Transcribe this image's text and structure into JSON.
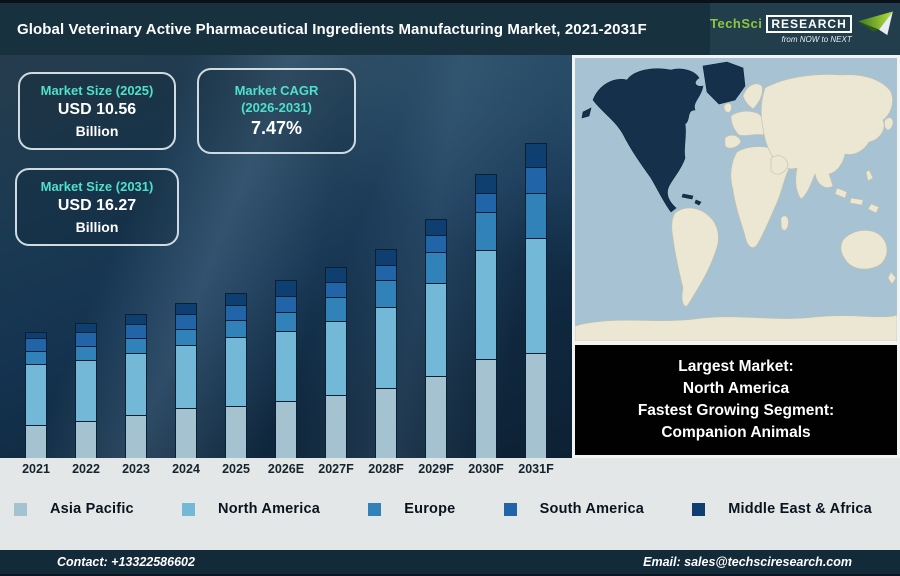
{
  "header": {
    "title": "Global Veterinary Active Pharmaceutical Ingredients Manufacturing Market, 2021-2031F",
    "logo": {
      "brand_green": "TechSci",
      "brand_white": "Research",
      "tagline": "from NOW to NEXT",
      "accent_green": "#8dc63f"
    }
  },
  "info_boxes": [
    {
      "title_lines": [
        "Market Size (2025)"
      ],
      "value": "USD 10.56",
      "unit": "Billion"
    },
    {
      "title_lines": [
        "Market CAGR",
        "(2026-2031)"
      ],
      "value": "7.47%",
      "unit": ""
    },
    {
      "title_lines": [
        "Market Size (2031)"
      ],
      "value": "USD 16.27",
      "unit": "Billion"
    }
  ],
  "chart_data": {
    "type": "bar",
    "stacked": true,
    "title": "Global Veterinary Active Pharmaceutical Ingredients Manufacturing Market, 2021-2031F",
    "categories": [
      "2021",
      "2022",
      "2023",
      "2024",
      "2025",
      "2026E",
      "2027F",
      "2028F",
      "2029F",
      "2030F",
      "2031F"
    ],
    "series": [
      {
        "name": "Asia Pacific",
        "color": "#a4c2cf",
        "values": [
          34,
          38,
          44,
          51,
          53,
          58,
          64,
          71,
          83,
          100,
          106
        ]
      },
      {
        "name": "North America",
        "color": "#74b8d8",
        "values": [
          62,
          62,
          63,
          64,
          70,
          71,
          75,
          82,
          94,
          110,
          116
        ]
      },
      {
        "name": "Europe",
        "color": "#3282ba",
        "values": [
          14,
          15,
          16,
          17,
          18,
          20,
          25,
          28,
          32,
          39,
          46
        ]
      },
      {
        "name": "South America",
        "color": "#2164a8",
        "values": [
          14,
          15,
          15,
          16,
          16,
          17,
          16,
          16,
          18,
          20,
          27
        ]
      },
      {
        "name": "Middle East & Africa",
        "color": "#0e3f70",
        "values": [
          7,
          10,
          11,
          12,
          13,
          17,
          16,
          17,
          17,
          20,
          25
        ]
      }
    ],
    "value_units": "relative segment heights in px (stylized chart, no y-axis shown)",
    "known_totals": {
      "2025": "USD 10.56 Billion",
      "2031": "USD 16.27 Billion"
    },
    "xlabel": "",
    "ylabel": "",
    "grid": false,
    "legend_position": "bottom"
  },
  "map": {
    "highlighted_region": "North America",
    "highlight_color": "#15304b",
    "land_color": "#ebe7d2",
    "ocean_color": "#a7c3d3"
  },
  "callout": {
    "lines": [
      "Largest Market:",
      "North America",
      "Fastest Growing Segment:",
      "Companion Animals"
    ]
  },
  "footer": {
    "contact": "Contact: +13322586602",
    "email": "Email: sales@techsciresearch.com"
  }
}
